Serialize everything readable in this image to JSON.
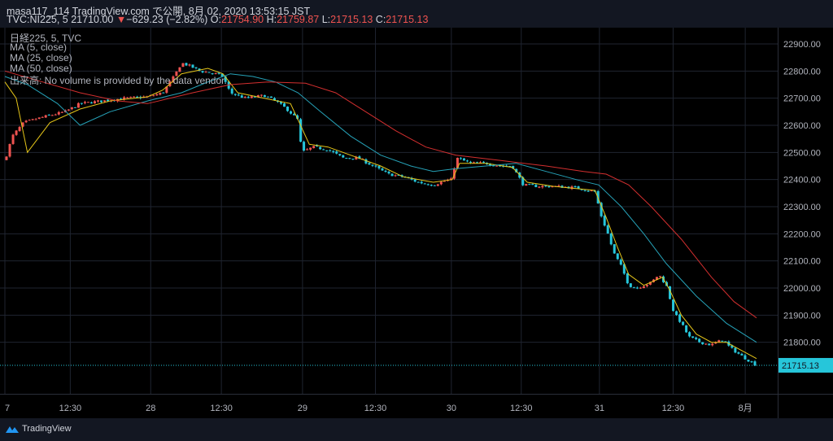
{
  "header": {
    "publish_line": "masa117_114 TradingView.com で公開, 8月 02, 2020 13:53:15 JST",
    "symbol": "TVC:NI225, 5",
    "price": "21710.00",
    "change_arrow": "▼",
    "change": "−629.23 (−2.82%)",
    "o_label": "O:",
    "o_value": "21754.90",
    "h_label": "H:",
    "h_value": "21759.87",
    "l_label": "L:",
    "l_value": "21715.13",
    "c_label": "C:",
    "c_value": "21715.13"
  },
  "legend": {
    "title": "日経225, 5, TVC",
    "ma5": "MA (5, close)",
    "ma25": "MA (25, close)",
    "ma50": "MA (50, close)",
    "volume": "出来高: No volume is provided by the data vendor."
  },
  "footer": {
    "brand": "TradingView"
  },
  "colors": {
    "up": "#ef5350",
    "down": "#26c6da",
    "ma5": "#e6c619",
    "ma25": "#26a2b8",
    "ma50": "#d32f2f",
    "grid": "#1f2430",
    "price_label": "#26c6da"
  },
  "chart_data": {
    "type": "line",
    "chart_kind": "candlestick",
    "ylim": [
      21610,
      22960
    ],
    "y_ticks": [
      21800,
      21900,
      22000,
      22100,
      22200,
      22300,
      22400,
      22500,
      22600,
      22700,
      22800,
      22900
    ],
    "y_tick_labels": [
      "21800.00",
      "21900.00",
      "22000.00",
      "22100.00",
      "22200.00",
      "22300.00",
      "22400.00",
      "22500.00",
      "22600.00",
      "22700.00",
      "22800.00",
      "22900.00"
    ],
    "last_price_label": "21715.13",
    "last_price": 21715.13,
    "grid": true,
    "x_ticks": [
      {
        "label": "7",
        "t": 0
      },
      {
        "label": "12:30",
        "t": 0.087
      },
      {
        "label": "28",
        "t": 0.194
      },
      {
        "label": "12:30",
        "t": 0.288
      },
      {
        "label": "29",
        "t": 0.396
      },
      {
        "label": "12:30",
        "t": 0.493
      },
      {
        "label": "30",
        "t": 0.594
      },
      {
        "label": "12:30",
        "t": 0.687
      },
      {
        "label": "31",
        "t": 0.791
      },
      {
        "label": "12:30",
        "t": 0.889
      },
      {
        "label": "8月",
        "t": 0.985
      }
    ],
    "close_anchors": [
      [
        0,
        22470
      ],
      [
        0.01,
        22560
      ],
      [
        0.025,
        22610
      ],
      [
        0.05,
        22630
      ],
      [
        0.08,
        22650
      ],
      [
        0.1,
        22680
      ],
      [
        0.13,
        22690
      ],
      [
        0.16,
        22700
      ],
      [
        0.19,
        22705
      ],
      [
        0.21,
        22720
      ],
      [
        0.225,
        22780
      ],
      [
        0.235,
        22830
      ],
      [
        0.245,
        22820
      ],
      [
        0.26,
        22800
      ],
      [
        0.28,
        22790
      ],
      [
        0.29,
        22780
      ],
      [
        0.3,
        22720
      ],
      [
        0.32,
        22700
      ],
      [
        0.345,
        22710
      ],
      [
        0.36,
        22690
      ],
      [
        0.375,
        22660
      ],
      [
        0.39,
        22620
      ],
      [
        0.395,
        22500
      ],
      [
        0.41,
        22520
      ],
      [
        0.43,
        22510
      ],
      [
        0.45,
        22480
      ],
      [
        0.47,
        22480
      ],
      [
        0.49,
        22450
      ],
      [
        0.51,
        22420
      ],
      [
        0.53,
        22410
      ],
      [
        0.55,
        22390
      ],
      [
        0.57,
        22380
      ],
      [
        0.585,
        22395
      ],
      [
        0.595,
        22400
      ],
      [
        0.6,
        22480
      ],
      [
        0.62,
        22460
      ],
      [
        0.64,
        22460
      ],
      [
        0.66,
        22450
      ],
      [
        0.675,
        22450
      ],
      [
        0.69,
        22380
      ],
      [
        0.71,
        22375
      ],
      [
        0.73,
        22375
      ],
      [
        0.76,
        22370
      ],
      [
        0.785,
        22355
      ],
      [
        0.795,
        22250
      ],
      [
        0.8,
        22220
      ],
      [
        0.81,
        22130
      ],
      [
        0.82,
        22080
      ],
      [
        0.83,
        22010
      ],
      [
        0.84,
        22000
      ],
      [
        0.85,
        22010
      ],
      [
        0.86,
        22020
      ],
      [
        0.87,
        22050
      ],
      [
        0.88,
        22010
      ],
      [
        0.885,
        21960
      ],
      [
        0.89,
        21910
      ],
      [
        0.9,
        21870
      ],
      [
        0.91,
        21820
      ],
      [
        0.925,
        21800
      ],
      [
        0.94,
        21790
      ],
      [
        0.955,
        21810
      ],
      [
        0.965,
        21780
      ],
      [
        0.98,
        21750
      ],
      [
        1.0,
        21715
      ]
    ],
    "series": [
      {
        "name": "MA (5, close)",
        "color": "#e6c619",
        "values": [
          [
            0,
            22760
          ],
          [
            0.015,
            22700
          ],
          [
            0.03,
            22500
          ],
          [
            0.06,
            22610
          ],
          [
            0.1,
            22660
          ],
          [
            0.14,
            22690
          ],
          [
            0.19,
            22705
          ],
          [
            0.21,
            22730
          ],
          [
            0.235,
            22790
          ],
          [
            0.27,
            22810
          ],
          [
            0.29,
            22790
          ],
          [
            0.31,
            22720
          ],
          [
            0.345,
            22700
          ],
          [
            0.38,
            22680
          ],
          [
            0.39,
            22620
          ],
          [
            0.405,
            22530
          ],
          [
            0.43,
            22520
          ],
          [
            0.46,
            22490
          ],
          [
            0.5,
            22450
          ],
          [
            0.53,
            22410
          ],
          [
            0.57,
            22390
          ],
          [
            0.595,
            22400
          ],
          [
            0.605,
            22460
          ],
          [
            0.64,
            22460
          ],
          [
            0.675,
            22445
          ],
          [
            0.695,
            22390
          ],
          [
            0.73,
            22375
          ],
          [
            0.785,
            22360
          ],
          [
            0.8,
            22260
          ],
          [
            0.815,
            22150
          ],
          [
            0.83,
            22050
          ],
          [
            0.85,
            22010
          ],
          [
            0.875,
            22040
          ],
          [
            0.885,
            21990
          ],
          [
            0.9,
            21900
          ],
          [
            0.92,
            21830
          ],
          [
            0.94,
            21800
          ],
          [
            0.96,
            21800
          ],
          [
            0.98,
            21770
          ],
          [
            1.0,
            21740
          ]
        ]
      },
      {
        "name": "MA (25, close)",
        "color": "#26a2b8",
        "values": [
          [
            0,
            22780
          ],
          [
            0.03,
            22750
          ],
          [
            0.07,
            22680
          ],
          [
            0.1,
            22600
          ],
          [
            0.14,
            22650
          ],
          [
            0.19,
            22690
          ],
          [
            0.235,
            22720
          ],
          [
            0.27,
            22760
          ],
          [
            0.3,
            22790
          ],
          [
            0.33,
            22780
          ],
          [
            0.36,
            22760
          ],
          [
            0.39,
            22720
          ],
          [
            0.42,
            22650
          ],
          [
            0.46,
            22560
          ],
          [
            0.5,
            22490
          ],
          [
            0.54,
            22450
          ],
          [
            0.57,
            22430
          ],
          [
            0.6,
            22440
          ],
          [
            0.64,
            22450
          ],
          [
            0.68,
            22460
          ],
          [
            0.72,
            22430
          ],
          [
            0.76,
            22400
          ],
          [
            0.79,
            22380
          ],
          [
            0.82,
            22300
          ],
          [
            0.85,
            22200
          ],
          [
            0.88,
            22090
          ],
          [
            0.92,
            21970
          ],
          [
            0.96,
            21870
          ],
          [
            1.0,
            21800
          ]
        ]
      },
      {
        "name": "MA (50, close)",
        "color": "#d32f2f",
        "values": [
          [
            0,
            22800
          ],
          [
            0.05,
            22760
          ],
          [
            0.1,
            22720
          ],
          [
            0.15,
            22690
          ],
          [
            0.19,
            22680
          ],
          [
            0.25,
            22720
          ],
          [
            0.3,
            22750
          ],
          [
            0.35,
            22760
          ],
          [
            0.4,
            22755
          ],
          [
            0.44,
            22720
          ],
          [
            0.48,
            22650
          ],
          [
            0.52,
            22580
          ],
          [
            0.56,
            22520
          ],
          [
            0.6,
            22490
          ],
          [
            0.66,
            22470
          ],
          [
            0.72,
            22450
          ],
          [
            0.77,
            22430
          ],
          [
            0.8,
            22420
          ],
          [
            0.83,
            22380
          ],
          [
            0.86,
            22300
          ],
          [
            0.9,
            22180
          ],
          [
            0.94,
            22040
          ],
          [
            0.97,
            21950
          ],
          [
            1.0,
            21890
          ]
        ]
      }
    ]
  }
}
